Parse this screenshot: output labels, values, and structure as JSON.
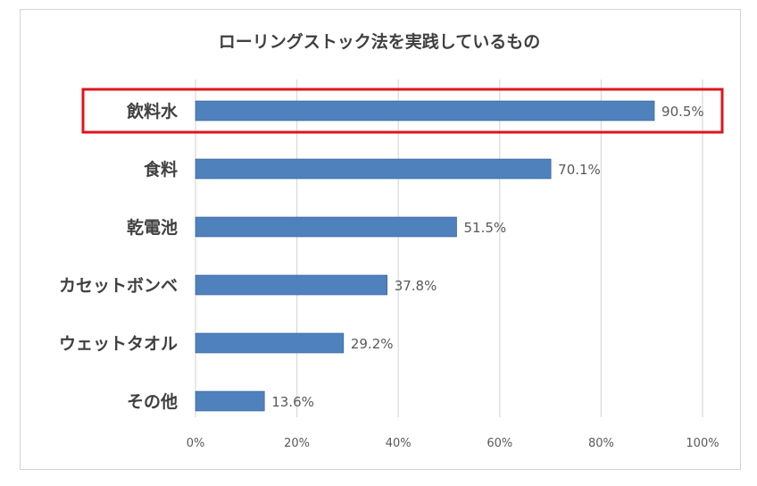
{
  "chart_data": {
    "type": "bar",
    "orientation": "horizontal",
    "title": "ローリングストック法を実践しているもの",
    "categories": [
      "飲料水",
      "食料",
      "乾電池",
      "カセットボンベ",
      "ウェットタオル",
      "その他"
    ],
    "values": [
      90.5,
      70.1,
      51.5,
      37.8,
      29.2,
      13.6
    ],
    "data_labels": [
      "90.5%",
      "70.1%",
      "51.5%",
      "37.8%",
      "29.2%",
      "13.6%"
    ],
    "x_ticks": [
      "0%",
      "20%",
      "40%",
      "60%",
      "80%",
      "100%"
    ],
    "xlim": [
      0,
      100
    ],
    "grid": true,
    "legend": "none",
    "highlighted_category": "飲料水",
    "colors": {
      "bar": "#4f81bd",
      "highlight": "#e0141e",
      "grid": "#d9d9d9"
    }
  }
}
